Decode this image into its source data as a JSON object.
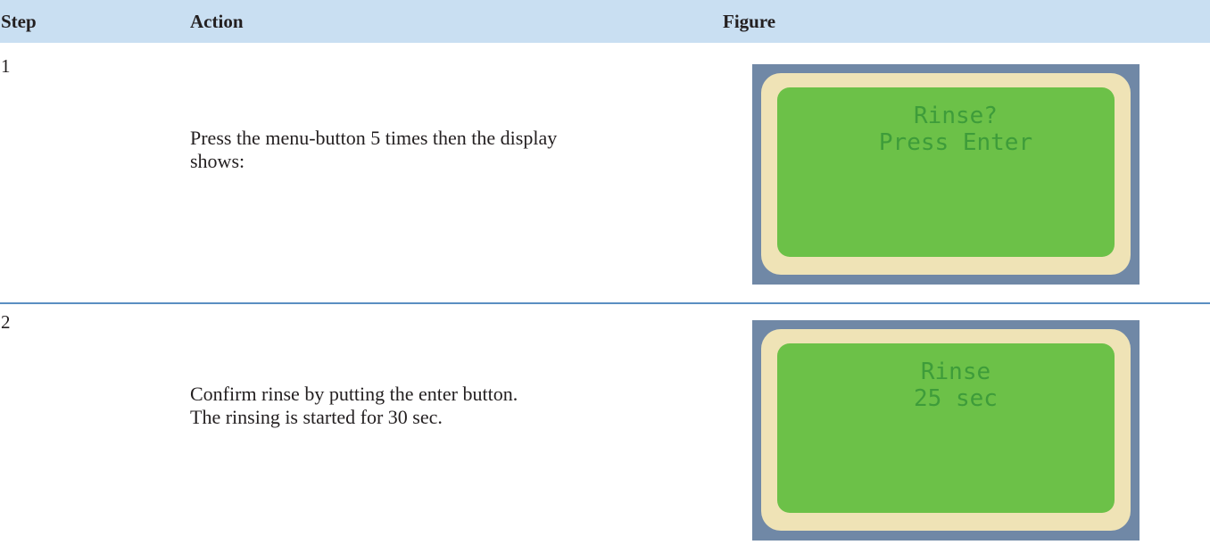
{
  "header": {
    "columns": [
      "Step",
      "Action",
      "Figure"
    ]
  },
  "rows": [
    {
      "step": "1",
      "action": [
        "Press the menu-button 5 times then the display",
        "shows:"
      ],
      "display": [
        "Rinse?",
        "Press Enter"
      ]
    },
    {
      "step": "2",
      "action": [
        "Confirm rinse by putting the enter button.",
        "The rinsing is started for 30 sec."
      ],
      "display": [
        "Rinse",
        "25 sec"
      ]
    }
  ]
}
